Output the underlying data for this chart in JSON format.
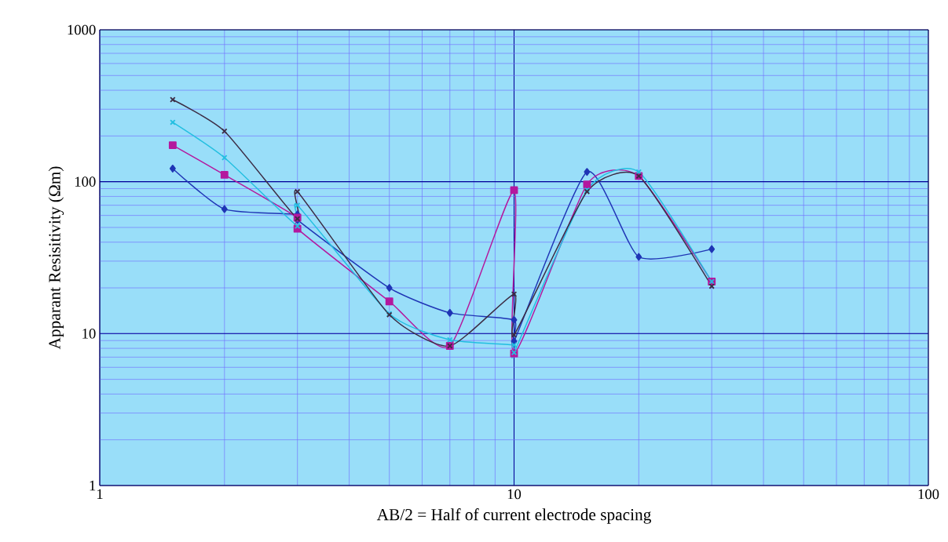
{
  "chart_data": {
    "type": "line",
    "xlabel": "AB/2 = Half of current electrode spacing",
    "ylabel": "Apparant Resisitivity  (Ωm)",
    "log": "xy",
    "grid": true,
    "xlim": [
      1,
      100
    ],
    "ylim": [
      1,
      1000
    ],
    "xticks": [
      1,
      10,
      100
    ],
    "yticks": [
      1,
      10,
      100,
      1000
    ],
    "x": [
      1.5,
      2,
      3,
      3,
      5,
      7,
      10,
      10,
      15,
      20,
      30
    ],
    "series": [
      {
        "color": "#1f35b5",
        "marker": "diamond",
        "values": [
          122,
          66,
          61,
          56,
          20,
          13.7,
          12.3,
          8.9,
          116,
          32,
          36
        ]
      },
      {
        "color": "#b4189e",
        "marker": "square",
        "values": [
          174,
          111,
          58,
          49,
          16.3,
          8.3,
          88,
          7.4,
          96,
          109,
          22
        ]
      },
      {
        "color": "#22bfe0",
        "marker": "cross",
        "values": [
          246,
          144,
          51,
          70,
          13.5,
          9.1,
          8.4,
          7.5,
          88,
          116,
          22
        ]
      },
      {
        "color": "#3c2c44",
        "marker": "cross",
        "values": [
          347,
          215,
          57,
          86,
          13.3,
          8.3,
          18.2,
          9.8,
          86,
          109,
          20.5
        ]
      }
    ]
  }
}
